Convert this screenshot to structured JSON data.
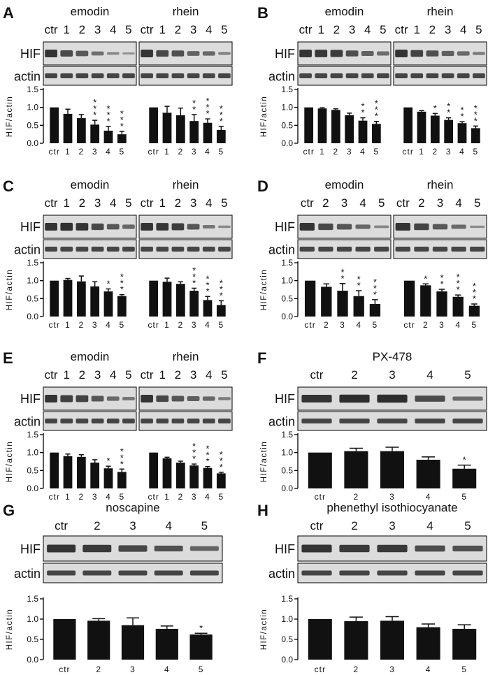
{
  "colors": {
    "bar": "#111111",
    "blot_bg": "#dcdcdc",
    "band": "#2a2a2a"
  },
  "common": {
    "row_hif": "HIF",
    "row_actin": "actin",
    "ylabel": "HIF/actin"
  },
  "panels": [
    {
      "letter": "A",
      "compounds": [
        "emodin",
        "rhein"
      ],
      "lanes": [
        "ctr",
        "1",
        "2",
        "3",
        "4",
        "5"
      ]
    },
    {
      "letter": "B",
      "compounds": [
        "emodin",
        "rhein"
      ],
      "lanes": [
        "ctr",
        "1",
        "2",
        "3",
        "4",
        "5"
      ]
    },
    {
      "letter": "C",
      "compounds": [
        "emodin",
        "rhein"
      ],
      "lanes": [
        "ctr",
        "1",
        "2",
        "3",
        "4",
        "5"
      ]
    },
    {
      "letter": "D",
      "compounds": [
        "emodin",
        "rhein"
      ],
      "lanes": [
        "ctr",
        "2",
        "3",
        "4",
        "5"
      ]
    },
    {
      "letter": "E",
      "compounds": [
        "emodin",
        "rhein"
      ],
      "lanes": [
        "ctr",
        "1",
        "2",
        "3",
        "4",
        "5"
      ]
    },
    {
      "letter": "F",
      "compounds": [
        "PX-478"
      ],
      "lanes": [
        "ctr",
        "2",
        "3",
        "4",
        "5"
      ]
    },
    {
      "letter": "G",
      "compounds": [
        "noscapine"
      ],
      "lanes": [
        "ctr",
        "2",
        "3",
        "4",
        "5"
      ]
    },
    {
      "letter": "H",
      "compounds": [
        "phenethyl isothiocyanate"
      ],
      "lanes": [
        "ctr",
        "2",
        "3",
        "4",
        "5"
      ]
    }
  ],
  "chart_data": [
    {
      "panel": "A",
      "type": "bar",
      "ylabel": "HIF/actin",
      "ylim": [
        0,
        1.5
      ],
      "yticks": [
        "0.0",
        "0.5",
        "1.0",
        "1.5"
      ],
      "categories": [
        "ctr",
        "1",
        "2",
        "3",
        "4",
        "5"
      ],
      "series": [
        {
          "name": "emodin",
          "values": [
            1.0,
            0.82,
            0.7,
            0.52,
            0.35,
            0.25
          ],
          "errors": [
            0,
            0.13,
            0.1,
            0.12,
            0.12,
            0.08
          ],
          "stars": [
            "",
            "",
            "",
            "***",
            "***",
            "***"
          ]
        },
        {
          "name": "rhein",
          "values": [
            1.0,
            0.85,
            0.78,
            0.62,
            0.57,
            0.37
          ],
          "errors": [
            0,
            0.18,
            0.2,
            0.18,
            0.11,
            0.1
          ],
          "stars": [
            "",
            "",
            "",
            "**",
            "***",
            "***"
          ]
        }
      ]
    },
    {
      "panel": "B",
      "type": "bar",
      "ylabel": "HIF/actin",
      "ylim": [
        0,
        1.5
      ],
      "yticks": [
        "0.0",
        "0.5",
        "1.0",
        "1.5"
      ],
      "categories": [
        "ctr",
        "1",
        "2",
        "3",
        "4",
        "5"
      ],
      "series": [
        {
          "name": "emodin",
          "values": [
            1.0,
            0.97,
            0.93,
            0.78,
            0.63,
            0.54
          ],
          "errors": [
            0,
            0.02,
            0.03,
            0.06,
            0.08,
            0.07
          ],
          "stars": [
            "",
            "",
            "",
            "",
            "**",
            "***"
          ]
        },
        {
          "name": "rhein",
          "values": [
            1.0,
            0.88,
            0.77,
            0.65,
            0.56,
            0.42
          ],
          "errors": [
            0,
            0.03,
            0.06,
            0.06,
            0.04,
            0.06
          ],
          "stars": [
            "",
            "",
            "*",
            "**",
            "**",
            "***"
          ]
        }
      ]
    },
    {
      "panel": "C",
      "type": "bar",
      "ylabel": "HIF/actin",
      "ylim": [
        0,
        1.5
      ],
      "yticks": [
        "0.0",
        "0.5",
        "1.0",
        "1.5"
      ],
      "categories": [
        "ctr",
        "1",
        "2",
        "3",
        "4",
        "5"
      ],
      "series": [
        {
          "name": "emodin",
          "values": [
            1.0,
            1.02,
            0.98,
            0.84,
            0.7,
            0.57
          ],
          "errors": [
            0,
            0.04,
            0.15,
            0.13,
            0.07,
            0.04
          ],
          "stars": [
            "",
            "",
            "",
            "",
            "*",
            "***"
          ]
        },
        {
          "name": "rhein",
          "values": [
            1.0,
            0.97,
            0.91,
            0.72,
            0.46,
            0.32
          ],
          "errors": [
            0,
            0.1,
            0.06,
            0.07,
            0.1,
            0.12
          ],
          "stars": [
            "",
            "",
            "",
            "***",
            "***",
            "***"
          ]
        }
      ]
    },
    {
      "panel": "D",
      "type": "bar",
      "ylabel": "HIF/actin",
      "ylim": [
        0,
        1.5
      ],
      "yticks": [
        "0.0",
        "0.5",
        "1.0",
        "1.5"
      ],
      "categories": [
        "ctr",
        "2",
        "3",
        "4",
        "5"
      ],
      "series": [
        {
          "name": "emodin",
          "values": [
            1.0,
            0.83,
            0.72,
            0.57,
            0.35
          ],
          "errors": [
            0,
            0.08,
            0.2,
            0.15,
            0.12
          ],
          "stars": [
            "",
            "",
            "**",
            "**",
            "***"
          ]
        },
        {
          "name": "rhein",
          "values": [
            1.0,
            0.87,
            0.7,
            0.55,
            0.3
          ],
          "errors": [
            0,
            0.04,
            0.06,
            0.05,
            0.05
          ],
          "stars": [
            "",
            "*",
            "**",
            "***",
            "***"
          ]
        }
      ]
    },
    {
      "panel": "E",
      "type": "bar",
      "ylabel": "HIF/actin",
      "ylim": [
        0,
        1.5
      ],
      "yticks": [
        "0.0",
        "0.5",
        "1.0",
        "1.5"
      ],
      "categories": [
        "ctr",
        "1",
        "2",
        "3",
        "4",
        "5"
      ],
      "series": [
        {
          "name": "emodin",
          "values": [
            1.0,
            0.9,
            0.88,
            0.72,
            0.56,
            0.46
          ],
          "errors": [
            0,
            0.06,
            0.06,
            0.08,
            0.06,
            0.08
          ],
          "stars": [
            "",
            "",
            "",
            "",
            "*",
            "***"
          ]
        },
        {
          "name": "rhein",
          "values": [
            1.0,
            0.84,
            0.72,
            0.64,
            0.57,
            0.42
          ],
          "errors": [
            0,
            0.03,
            0.04,
            0.04,
            0.04,
            0.03
          ],
          "stars": [
            "",
            "",
            "",
            "***",
            "***",
            "***"
          ]
        }
      ]
    },
    {
      "panel": "F",
      "type": "bar",
      "ylabel": "HIF/actin",
      "ylim": [
        0,
        1.5
      ],
      "yticks": [
        "0.0",
        "0.5",
        "1.0",
        "1.5"
      ],
      "categories": [
        "ctr",
        "2",
        "3",
        "4",
        "5"
      ],
      "series": [
        {
          "name": "PX-478",
          "values": [
            1.0,
            1.04,
            1.04,
            0.8,
            0.55
          ],
          "errors": [
            0,
            0.08,
            0.11,
            0.08,
            0.1
          ],
          "stars": [
            "",
            "",
            "",
            "",
            "*"
          ]
        }
      ]
    },
    {
      "panel": "G",
      "type": "bar",
      "ylabel": "HIF/actin",
      "ylim": [
        0,
        1.5
      ],
      "yticks": [
        "0.0",
        "0.5",
        "1.0",
        "1.5"
      ],
      "categories": [
        "ctr",
        "2",
        "3",
        "4",
        "5"
      ],
      "series": [
        {
          "name": "noscapine",
          "values": [
            1.0,
            0.96,
            0.85,
            0.76,
            0.62
          ],
          "errors": [
            0,
            0.05,
            0.18,
            0.07,
            0.03
          ],
          "stars": [
            "",
            "",
            "",
            "",
            "*"
          ]
        }
      ]
    },
    {
      "panel": "H",
      "type": "bar",
      "ylabel": "HIF/actin",
      "ylim": [
        0,
        1.5
      ],
      "yticks": [
        "0.0",
        "0.5",
        "1.0",
        "1.5"
      ],
      "categories": [
        "ctr",
        "2",
        "3",
        "4",
        "5"
      ],
      "series": [
        {
          "name": "phenethyl isothiocyanate",
          "values": [
            1.0,
            0.95,
            0.96,
            0.8,
            0.76
          ],
          "errors": [
            0,
            0.1,
            0.1,
            0.08,
            0.1
          ],
          "stars": [
            "",
            "",
            "",
            "",
            ""
          ]
        }
      ]
    }
  ]
}
